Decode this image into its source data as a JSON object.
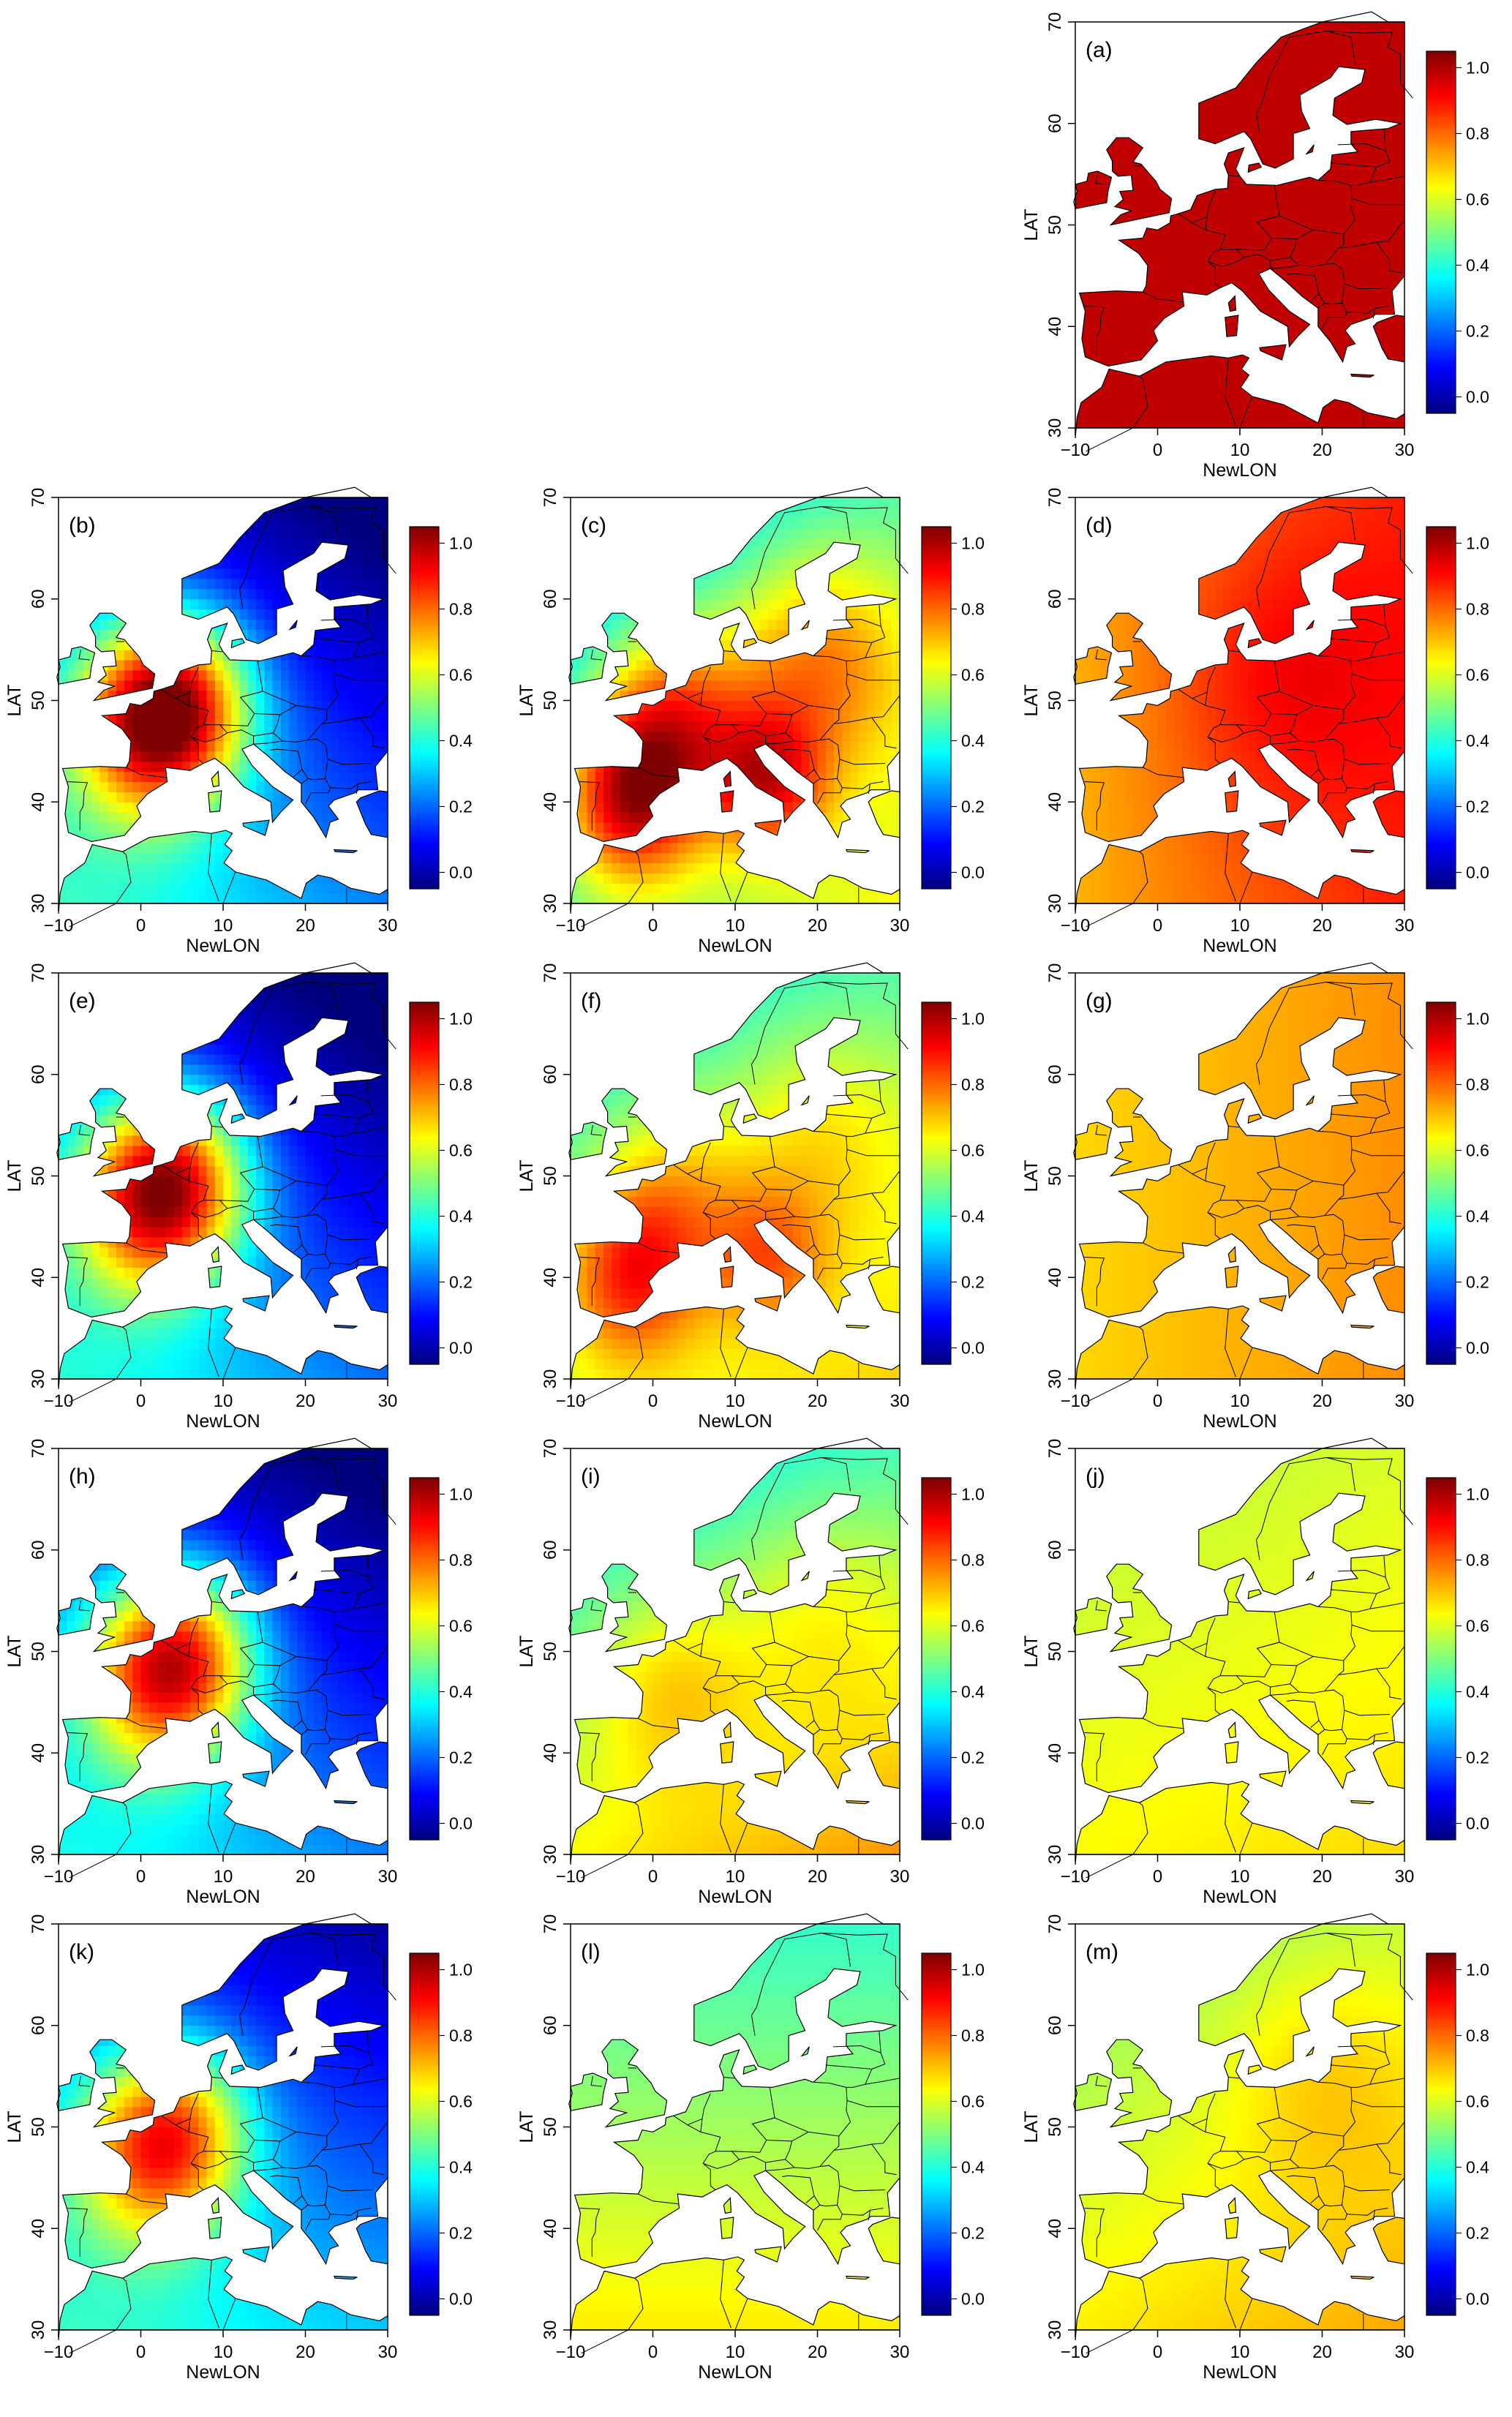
{
  "figure": {
    "x_axis_label": "NewLON",
    "y_axis_label": "LAT",
    "x_ticks": [
      "−10",
      "0",
      "10",
      "20",
      "30"
    ],
    "y_ticks": [
      "30",
      "40",
      "50",
      "60",
      "70"
    ],
    "colorbar_ticks": [
      "0.0",
      "0.2",
      "0.4",
      "0.6",
      "0.8",
      "1.0"
    ],
    "colorscale": [
      "#00007f",
      "#0000ff",
      "#007fff",
      "#00ffff",
      "#7fff7f",
      "#ffff00",
      "#ff7f00",
      "#ff0000",
      "#7f0000"
    ],
    "ocean_color": "#ffffff",
    "border_color": "#000000"
  },
  "chart_data": {
    "type": "heatmap",
    "description_units": "normalized value 0–1 on colorbar",
    "x_range": [
      -10,
      30
    ],
    "y_range": [
      30,
      70
    ],
    "colorbar_range": [
      -0.05,
      1.05
    ],
    "panels": [
      {
        "id": "a",
        "label": "(a)",
        "row": 0,
        "col": 2,
        "base": 0.98,
        "north_gain": 0.0,
        "east_gain": 0.0,
        "hot": [],
        "show_xlabel": true
      },
      {
        "id": "b",
        "label": "(b)",
        "row": 1,
        "col": 0,
        "base": 0.18,
        "north_gain": -0.08,
        "east_gain": -0.05,
        "hot": [
          [
            1,
            48,
            0.68,
            7
          ],
          [
            6,
            50,
            0.35,
            6
          ]
        ],
        "show_xlabel": true
      },
      {
        "id": "c",
        "label": "(c)",
        "row": 1,
        "col": 1,
        "base": 0.45,
        "north_gain": -0.05,
        "east_gain": 0.05,
        "hot": [
          [
            -3,
            40,
            0.45,
            6
          ],
          [
            2,
            48,
            0.4,
            7
          ],
          [
            14,
            42,
            0.35,
            5
          ],
          [
            20,
            54,
            0.3,
            8
          ]
        ],
        "show_xlabel": true
      },
      {
        "id": "d",
        "label": "(d)",
        "row": 1,
        "col": 2,
        "base": 0.8,
        "north_gain": 0.0,
        "east_gain": 0.04,
        "hot": [
          [
            15,
            52,
            0.1,
            10
          ]
        ],
        "show_xlabel": true
      },
      {
        "id": "e",
        "label": "(e)",
        "row": 2,
        "col": 0,
        "base": 0.16,
        "north_gain": -0.08,
        "east_gain": -0.05,
        "hot": [
          [
            1,
            48,
            0.65,
            7
          ],
          [
            6,
            50,
            0.3,
            6
          ]
        ],
        "show_xlabel": true
      },
      {
        "id": "f",
        "label": "(f)",
        "row": 2,
        "col": 1,
        "base": 0.52,
        "north_gain": -0.06,
        "east_gain": 0.03,
        "hot": [
          [
            -3,
            40,
            0.3,
            6
          ],
          [
            2,
            48,
            0.2,
            7
          ],
          [
            14,
            42,
            0.2,
            5
          ],
          [
            20,
            54,
            0.15,
            8
          ]
        ],
        "show_xlabel": true
      },
      {
        "id": "g",
        "label": "(g)",
        "row": 2,
        "col": 2,
        "base": 0.72,
        "north_gain": 0.0,
        "east_gain": 0.02,
        "hot": [],
        "show_xlabel": true
      },
      {
        "id": "h",
        "label": "(h)",
        "row": 3,
        "col": 0,
        "base": 0.16,
        "north_gain": -0.08,
        "east_gain": -0.04,
        "hot": [
          [
            2,
            48,
            0.6,
            7
          ],
          [
            7,
            50,
            0.28,
            6
          ]
        ],
        "show_xlabel": true
      },
      {
        "id": "i",
        "label": "(i)",
        "row": 3,
        "col": 1,
        "base": 0.55,
        "north_gain": -0.08,
        "east_gain": 0.03,
        "hot": [
          [
            2,
            47,
            0.15,
            7
          ],
          [
            20,
            54,
            0.1,
            8
          ]
        ],
        "show_xlabel": true
      },
      {
        "id": "j",
        "label": "(j)",
        "row": 3,
        "col": 2,
        "base": 0.62,
        "north_gain": -0.02,
        "east_gain": 0.01,
        "hot": [],
        "show_xlabel": true
      },
      {
        "id": "k",
        "label": "(k)",
        "row": 4,
        "col": 0,
        "base": 0.22,
        "north_gain": -0.08,
        "east_gain": -0.03,
        "hot": [
          [
            1,
            48,
            0.5,
            7
          ],
          [
            6,
            50,
            0.25,
            6
          ]
        ],
        "show_xlabel": true
      },
      {
        "id": "l",
        "label": "(l)",
        "row": 4,
        "col": 1,
        "base": 0.55,
        "north_gain": -0.06,
        "east_gain": 0.0,
        "hot": [],
        "show_xlabel": true
      },
      {
        "id": "m",
        "label": "(m)",
        "row": 4,
        "col": 2,
        "base": 0.62,
        "north_gain": -0.04,
        "east_gain": 0.02,
        "hot": [
          [
            20,
            55,
            0.08,
            8
          ]
        ],
        "show_xlabel": true
      }
    ]
  }
}
